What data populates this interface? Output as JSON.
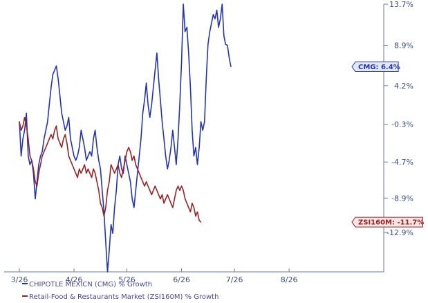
{
  "chart_data": {
    "type": "line",
    "title": "",
    "xlabel": "",
    "ylabel": "",
    "x_ticks": [
      "3/26",
      "4/26",
      "5/26",
      "6/26",
      "7/26",
      "8/26"
    ],
    "y_ticks": [
      "13.7%",
      "8.9%",
      "4.2%",
      "-0.3%",
      "-4.7%",
      "-8.9%",
      "-12.9%"
    ],
    "y_tick_values": [
      13.7,
      8.9,
      4.2,
      -0.3,
      -4.7,
      -8.9,
      -12.9
    ],
    "ylim": [
      -17.5,
      13.7
    ],
    "grid": false,
    "legend_position": "bottom-left",
    "series": [
      {
        "name": "CHIPOTLE MEXICN (CMG) % Growth",
        "color": "#2233bb",
        "last_label": "CMG: 6.4%",
        "points": [
          [
            "3/26",
            0.0
          ],
          [
            "3/27",
            -4.0
          ],
          [
            "3/28",
            -2.0
          ],
          [
            "3/29",
            -1.0
          ],
          [
            "3/30",
            1.0
          ],
          [
            "3/31",
            -4.0
          ],
          [
            "4/1",
            -5.0
          ],
          [
            "4/2",
            -4.5
          ],
          [
            "4/3",
            -6.0
          ],
          [
            "4/4",
            -9.0
          ],
          [
            "4/5",
            -7.0
          ],
          [
            "4/6",
            -5.0
          ],
          [
            "4/7",
            -4.0
          ],
          [
            "4/8",
            -3.5
          ],
          [
            "4/9",
            -2.0
          ],
          [
            "4/10",
            -1.0
          ],
          [
            "4/11",
            0.0
          ],
          [
            "4/12",
            2.0
          ],
          [
            "4/13",
            4.0
          ],
          [
            "4/14",
            5.5
          ],
          [
            "4/15",
            6.0
          ],
          [
            "4/16",
            6.5
          ],
          [
            "4/17",
            5.0
          ],
          [
            "4/18",
            3.0
          ],
          [
            "4/19",
            1.0
          ],
          [
            "4/20",
            0.0
          ],
          [
            "4/21",
            -1.0
          ],
          [
            "4/22",
            -0.5
          ],
          [
            "4/23",
            0.5
          ],
          [
            "4/24",
            -2.0
          ],
          [
            "4/25",
            -3.0
          ],
          [
            "4/26",
            -4.0
          ],
          [
            "4/27",
            -4.5
          ],
          [
            "4/28",
            -4.0
          ],
          [
            "4/29",
            -3.0
          ],
          [
            "4/30",
            -1.0
          ],
          [
            "5/1",
            -2.0
          ],
          [
            "5/2",
            -3.0
          ],
          [
            "5/3",
            -4.5
          ],
          [
            "5/4",
            -4.0
          ],
          [
            "5/5",
            -3.5
          ],
          [
            "5/6",
            -4.0
          ],
          [
            "5/7",
            -2.0
          ],
          [
            "5/8",
            -1.0
          ],
          [
            "5/9",
            -3.0
          ],
          [
            "5/10",
            -4.5
          ],
          [
            "5/11",
            -5.5
          ],
          [
            "5/12",
            -8.0
          ],
          [
            "5/13",
            -10.5
          ],
          [
            "5/14",
            -14.0
          ],
          [
            "5/15",
            -17.5
          ],
          [
            "5/16",
            -15.0
          ],
          [
            "5/17",
            -12.0
          ],
          [
            "5/18",
            -13.0
          ],
          [
            "5/19",
            -10.0
          ],
          [
            "5/20",
            -8.0
          ],
          [
            "5/21",
            -5.0
          ],
          [
            "5/22",
            -4.0
          ],
          [
            "5/23",
            -5.5
          ],
          [
            "5/24",
            -6.0
          ],
          [
            "5/25",
            -4.0
          ],
          [
            "5/26",
            -5.0
          ],
          [
            "5/27",
            -6.0
          ],
          [
            "5/28",
            -7.0
          ],
          [
            "5/29",
            -9.0
          ],
          [
            "5/30",
            -10.0
          ],
          [
            "5/31",
            -8.0
          ],
          [
            "6/1",
            -6.0
          ],
          [
            "6/2",
            -4.0
          ],
          [
            "6/3",
            -2.0
          ],
          [
            "6/4",
            1.0
          ],
          [
            "6/5",
            2.5
          ],
          [
            "6/6",
            4.5
          ],
          [
            "6/7",
            2.0
          ],
          [
            "6/8",
            0.5
          ],
          [
            "6/9",
            2.0
          ],
          [
            "6/10",
            4.0
          ],
          [
            "6/11",
            6.0
          ],
          [
            "6/12",
            8.0
          ],
          [
            "6/13",
            5.0
          ],
          [
            "6/14",
            2.5
          ],
          [
            "6/15",
            0.0
          ],
          [
            "6/16",
            -2.0
          ],
          [
            "6/17",
            -4.0
          ],
          [
            "6/18",
            -5.5
          ],
          [
            "6/19",
            -4.5
          ],
          [
            "6/20",
            -3.0
          ],
          [
            "6/21",
            -1.0
          ],
          [
            "6/22",
            -3.0
          ],
          [
            "6/23",
            -5.0
          ],
          [
            "6/24",
            -2.0
          ],
          [
            "6/25",
            2.0
          ],
          [
            "6/26",
            7.0
          ],
          [
            "6/27",
            13.7
          ],
          [
            "6/28",
            10.5
          ],
          [
            "6/29",
            11.0
          ],
          [
            "6/30",
            8.0
          ],
          [
            "7/1",
            4.0
          ],
          [
            "7/2",
            -1.0
          ],
          [
            "7/3",
            -4.0
          ],
          [
            "7/4",
            -3.0
          ],
          [
            "7/5",
            -5.0
          ],
          [
            "7/6",
            -3.0
          ],
          [
            "7/7",
            0.0
          ],
          [
            "7/8",
            -1.0
          ],
          [
            "7/9",
            0.0
          ],
          [
            "7/10",
            5.0
          ],
          [
            "7/11",
            9.0
          ],
          [
            "7/12",
            10.5
          ],
          [
            "7/13",
            11.5
          ],
          [
            "7/14",
            12.5
          ],
          [
            "7/15",
            12.0
          ],
          [
            "7/16",
            13.0
          ],
          [
            "7/17",
            11.0
          ],
          [
            "7/18",
            12.0
          ],
          [
            "7/19",
            13.7
          ],
          [
            "7/20",
            10.0
          ],
          [
            "7/21",
            9.0
          ],
          [
            "7/22",
            8.9
          ],
          [
            "7/23",
            7.5
          ],
          [
            "7/24",
            6.4
          ]
        ]
      },
      {
        "name": "Retail-Food & Restaurants Market (ZSI160M) % Growth",
        "color": "#992222",
        "last_label": "ZSI160M: -11.7%",
        "points": [
          [
            "3/26",
            0.0
          ],
          [
            "3/27",
            -1.0
          ],
          [
            "3/28",
            -0.5
          ],
          [
            "3/29",
            0.5
          ],
          [
            "3/30",
            -0.5
          ],
          [
            "3/31",
            -2.0
          ],
          [
            "4/1",
            -4.0
          ],
          [
            "4/2",
            -4.5
          ],
          [
            "4/3",
            -5.5
          ],
          [
            "4/4",
            -7.0
          ],
          [
            "4/5",
            -7.5
          ],
          [
            "4/6",
            -6.0
          ],
          [
            "4/7",
            -5.0
          ],
          [
            "4/8",
            -4.0
          ],
          [
            "4/9",
            -3.5
          ],
          [
            "4/10",
            -3.0
          ],
          [
            "4/11",
            -2.5
          ],
          [
            "4/12",
            -2.0
          ],
          [
            "4/13",
            -1.5
          ],
          [
            "4/14",
            -2.0
          ],
          [
            "4/15",
            -1.0
          ],
          [
            "4/16",
            -0.5
          ],
          [
            "4/17",
            -2.0
          ],
          [
            "4/18",
            -2.5
          ],
          [
            "4/19",
            -3.0
          ],
          [
            "4/20",
            -2.0
          ],
          [
            "4/21",
            -1.5
          ],
          [
            "4/22",
            -2.5
          ],
          [
            "4/23",
            -4.0
          ],
          [
            "4/24",
            -4.5
          ],
          [
            "4/25",
            -5.0
          ],
          [
            "4/26",
            -5.5
          ],
          [
            "4/27",
            -6.0
          ],
          [
            "4/28",
            -6.5
          ],
          [
            "4/29",
            -5.5
          ],
          [
            "4/30",
            -6.0
          ],
          [
            "5/1",
            -5.5
          ],
          [
            "5/2",
            -5.0
          ],
          [
            "5/3",
            -6.0
          ],
          [
            "5/4",
            -5.5
          ],
          [
            "5/5",
            -6.0
          ],
          [
            "5/6",
            -6.5
          ],
          [
            "5/7",
            -5.5
          ],
          [
            "5/8",
            -6.0
          ],
          [
            "5/9",
            -7.0
          ],
          [
            "5/10",
            -8.0
          ],
          [
            "5/11",
            -9.5
          ],
          [
            "5/12",
            -10.0
          ],
          [
            "5/13",
            -11.0
          ],
          [
            "5/14",
            -10.0
          ],
          [
            "5/15",
            -8.0
          ],
          [
            "5/16",
            -7.0
          ],
          [
            "5/17",
            -5.0
          ],
          [
            "5/18",
            -5.5
          ],
          [
            "5/19",
            -6.0
          ],
          [
            "5/20",
            -5.5
          ],
          [
            "5/21",
            -5.0
          ],
          [
            "5/22",
            -6.0
          ],
          [
            "5/23",
            -6.5
          ],
          [
            "5/24",
            -5.5
          ],
          [
            "5/25",
            -4.5
          ],
          [
            "5/26",
            -3.5
          ],
          [
            "5/27",
            -3.0
          ],
          [
            "5/28",
            -3.5
          ],
          [
            "5/29",
            -4.5
          ],
          [
            "5/30",
            -4.0
          ],
          [
            "5/31",
            -5.0
          ],
          [
            "6/1",
            -5.5
          ],
          [
            "6/2",
            -6.0
          ],
          [
            "6/3",
            -6.5
          ],
          [
            "6/4",
            -7.0
          ],
          [
            "6/5",
            -7.5
          ],
          [
            "6/6",
            -7.0
          ],
          [
            "6/7",
            -7.5
          ],
          [
            "6/8",
            -8.0
          ],
          [
            "6/9",
            -8.5
          ],
          [
            "6/10",
            -8.0
          ],
          [
            "6/11",
            -7.5
          ],
          [
            "6/12",
            -8.0
          ],
          [
            "6/13",
            -8.5
          ],
          [
            "6/14",
            -9.0
          ],
          [
            "6/15",
            -8.5
          ],
          [
            "6/16",
            -9.5
          ],
          [
            "6/17",
            -9.0
          ],
          [
            "6/18",
            -8.5
          ],
          [
            "6/19",
            -9.0
          ],
          [
            "6/20",
            -9.5
          ],
          [
            "6/21",
            -10.0
          ],
          [
            "6/22",
            -9.0
          ],
          [
            "6/23",
            -8.0
          ],
          [
            "6/24",
            -7.5
          ],
          [
            "6/25",
            -8.0
          ],
          [
            "6/26",
            -7.5
          ],
          [
            "6/27",
            -8.0
          ],
          [
            "6/28",
            -9.0
          ],
          [
            "6/29",
            -9.5
          ],
          [
            "6/30",
            -10.0
          ],
          [
            "7/1",
            -10.5
          ],
          [
            "7/2",
            -9.5
          ],
          [
            "7/3",
            -10.0
          ],
          [
            "7/4",
            -11.0
          ],
          [
            "7/5",
            -10.5
          ],
          [
            "7/6",
            -11.5
          ],
          [
            "7/7",
            -11.7
          ]
        ]
      }
    ]
  }
}
